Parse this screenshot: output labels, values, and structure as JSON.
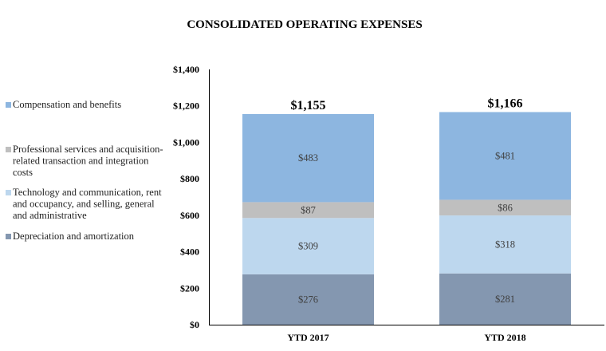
{
  "chart_data": {
    "type": "bar",
    "stacked": true,
    "title": "CONSOLIDATED OPERATING EXPENSES",
    "xlabel": "",
    "ylabel": "",
    "categories": [
      "YTD 2017",
      "YTD 2018"
    ],
    "ylim": [
      0,
      1400
    ],
    "yticks": [
      0,
      200,
      400,
      600,
      800,
      1000,
      1200,
      1400
    ],
    "ytick_labels": [
      "$0",
      "$200",
      "$400",
      "$600",
      "$800",
      "$1,000",
      "$1,200",
      "$1,400"
    ],
    "grid": false,
    "legend_position": "left",
    "series": [
      {
        "name": "Depreciation and amortization",
        "values": [
          276,
          281
        ],
        "labels": [
          "$276",
          "$281"
        ],
        "color": "#8497B0"
      },
      {
        "name": "Technology and communication, rent and occupancy, and selling, general and administrative",
        "values": [
          309,
          318
        ],
        "labels": [
          "$309",
          "$318"
        ],
        "color": "#BDD7EE"
      },
      {
        "name": "Professional services and acquisition-related transaction and integration costs",
        "values": [
          87,
          86
        ],
        "labels": [
          "$87",
          "$86"
        ],
        "color": "#BFBFBF"
      },
      {
        "name": "Compensation and benefits",
        "values": [
          483,
          481
        ],
        "labels": [
          "$483",
          "$481"
        ],
        "color": "#8DB6E0"
      }
    ],
    "totals": [
      1155,
      1166
    ],
    "total_labels": [
      "$1,155",
      "$1,166"
    ],
    "legend": [
      {
        "lines": [
          "Compensation and benefits"
        ],
        "color": "#8DB6E0"
      },
      {
        "lines": [
          "Professional services and acquisition-",
          "related transaction and integration",
          "costs"
        ],
        "color": "#BFBFBF"
      },
      {
        "lines": [
          "Technology and communication, rent",
          "and occupancy, and selling, general",
          "and administrative"
        ],
        "color": "#BDD7EE"
      },
      {
        "lines": [
          "Depreciation and amortization"
        ],
        "color": "#8497B0"
      }
    ]
  }
}
